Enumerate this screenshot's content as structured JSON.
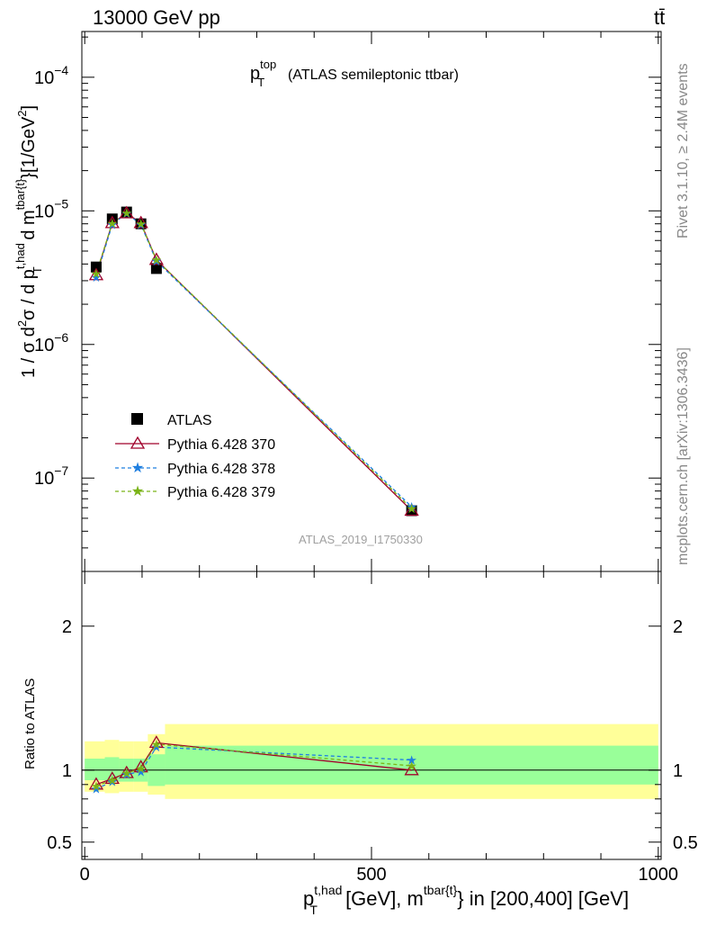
{
  "header": {
    "left": "13000 GeV pp",
    "right": "tt̄"
  },
  "side_labels": {
    "rivet": "Rivet 3.1.10, ≥ 2.4M events",
    "mcplots": "mcplots.cern.ch [arXiv:1306.3436]"
  },
  "chart_data": [
    {
      "type": "line",
      "title_main": "p",
      "title_sup": "top",
      "title_sub": "T",
      "title_rest": "(ATLAS semileptonic ttbar)",
      "analysis_label": "ATLAS_2019_I1750330",
      "ylabel_parts": {
        "pre": "1 / σ d",
        "sup2": "2",
        "mid": "σ / d p",
        "ptsup": "t,had",
        "ptsub": "T",
        "dm": " d m",
        "msup": "tbar{t}",
        "unit": "}[1/GeV",
        "unitsup": "2",
        "close": "]"
      },
      "yscale": "log",
      "ylim": [
        2e-08,
        0.00022
      ],
      "xlim": [
        -5,
        1005
      ],
      "yticks": [
        {
          "value": 1e-07,
          "base": "10",
          "exp": "−7"
        },
        {
          "value": 1e-06,
          "base": "10",
          "exp": "−6"
        },
        {
          "value": 1e-05,
          "base": "10",
          "exp": "−5"
        },
        {
          "value": 0.0001,
          "base": "10",
          "exp": "−4"
        }
      ],
      "legend": {
        "position": "lower-left",
        "entries": [
          {
            "label": "ATLAS",
            "marker": "square",
            "color": "#000000"
          },
          {
            "label": "Pythia 6.428 370",
            "marker": "triangle",
            "color": "#a0002a"
          },
          {
            "label": "Pythia 6.428 378",
            "marker": "star",
            "color": "#1f7fe0"
          },
          {
            "label": "Pythia 6.428 379",
            "marker": "star",
            "color": "#7ab317"
          }
        ]
      },
      "series": [
        {
          "name": "ATLAS",
          "marker": "square",
          "color": "#000000",
          "x": [
            20,
            48,
            73,
            98,
            125,
            570
          ],
          "y": [
            3.8e-06,
            8.7e-06,
            9.8e-06,
            8e-06,
            3.7e-06,
            5.7e-08
          ]
        },
        {
          "name": "Pythia 6.428 370",
          "marker": "triangle",
          "color": "#a0002a",
          "x": [
            20,
            48,
            73,
            98,
            125,
            570
          ],
          "y": [
            3.3e-06,
            8.1e-06,
            9.6e-06,
            8.1e-06,
            4.3e-06,
            5.7e-08
          ]
        },
        {
          "name": "Pythia 6.428 378",
          "marker": "star",
          "color": "#1f7fe0",
          "x": [
            20,
            48,
            73,
            98,
            125,
            570
          ],
          "y": [
            3.2e-06,
            7.9e-06,
            9.6e-06,
            7.9e-06,
            4.2e-06,
            6.1e-08
          ]
        },
        {
          "name": "Pythia 6.428 379",
          "marker": "star",
          "color": "#7ab317",
          "x": [
            20,
            48,
            73,
            98,
            125,
            570
          ],
          "y": [
            3.4e-06,
            8.1e-06,
            9.7e-06,
            8e-06,
            4.3e-06,
            5.9e-08
          ]
        }
      ]
    },
    {
      "type": "line",
      "ylabel": "Ratio to ATLAS",
      "ylim": [
        0.38,
        2.38
      ],
      "xlim": [
        -5,
        1005
      ],
      "yticks": [
        {
          "value": 0.5,
          "label": "0.5"
        },
        {
          "value": 1,
          "label": "1"
        },
        {
          "value": 2,
          "label": "2"
        }
      ],
      "xticks": [
        {
          "value": 0,
          "label": "0"
        },
        {
          "value": 500,
          "label": "500"
        },
        {
          "value": 1000,
          "label": "1000"
        }
      ],
      "xlabel_parts": {
        "pt": "p",
        "ptsup": "t,had",
        "ptsub": "T",
        "mid": " [GeV], m",
        "msup": "tbar{t}",
        "rest": "} in [200,400] [GeV]"
      },
      "bands": {
        "bin_edges": [
          0,
          35,
          60,
          85,
          110,
          140,
          1000
        ],
        "outer": {
          "color": "#ffff99",
          "lo": [
            0.85,
            0.84,
            0.85,
            0.85,
            0.83,
            0.8
          ],
          "hi": [
            1.2,
            1.21,
            1.2,
            1.2,
            1.25,
            1.32
          ]
        },
        "inner": {
          "color": "#99ff99",
          "lo": [
            0.93,
            0.92,
            0.92,
            0.92,
            0.89,
            0.9
          ],
          "hi": [
            1.08,
            1.09,
            1.08,
            1.08,
            1.11,
            1.17
          ]
        }
      },
      "series": [
        {
          "name": "Pythia 6.428 370",
          "marker": "triangle",
          "color": "#a0002a",
          "x": [
            20,
            48,
            73,
            98,
            125,
            570
          ],
          "y": [
            0.9,
            0.94,
            0.98,
            1.02,
            1.19,
            1.0
          ]
        },
        {
          "name": "Pythia 6.428 378",
          "marker": "star",
          "color": "#1f7fe0",
          "x": [
            20,
            48,
            73,
            98,
            125,
            570
          ],
          "y": [
            0.87,
            0.92,
            0.97,
            0.99,
            1.16,
            1.07
          ]
        },
        {
          "name": "Pythia 6.428 379",
          "marker": "star",
          "color": "#7ab317",
          "x": [
            20,
            48,
            73,
            98,
            125,
            570
          ],
          "y": [
            0.89,
            0.93,
            0.98,
            1.01,
            1.18,
            1.03
          ]
        }
      ]
    }
  ]
}
